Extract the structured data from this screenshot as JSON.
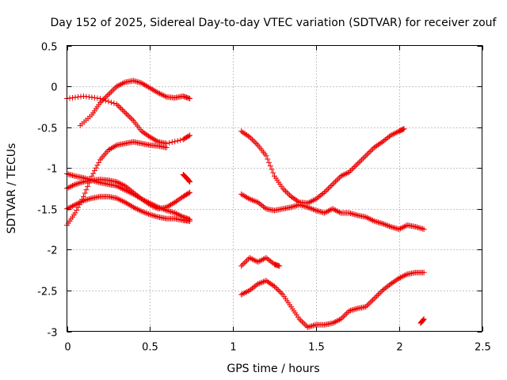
{
  "chart_data": {
    "type": "scatter",
    "title": "Day 152 of 2025, Sidereal Day-to-day VTEC variation (SDTVAR) for receiver zouf",
    "xlabel": "GPS time / hours",
    "ylabel": "SDTVAR / TECUs",
    "xlim": [
      0,
      2.5
    ],
    "ylim": [
      -3,
      0.5
    ],
    "xticks": [
      "0",
      "0.5",
      "1",
      "1.5",
      "2",
      "2.5"
    ],
    "xtick_values": [
      0,
      0.5,
      1,
      1.5,
      2,
      2.5
    ],
    "yticks": [
      "0.5",
      "0",
      "-0.5",
      "-1",
      "-1.5",
      "-2",
      "-2.5",
      "-3"
    ],
    "ytick_values": [
      0.5,
      0,
      -0.5,
      -1,
      -1.5,
      -2,
      -2.5,
      -3
    ],
    "grid": true,
    "marker": "+",
    "color": "#ee0000",
    "series": [
      {
        "x": [
          0.0,
          0.1,
          0.2,
          0.3,
          0.35,
          0.4,
          0.45,
          0.5,
          0.55,
          0.6,
          0.7,
          0.74
        ],
        "y": [
          -0.15,
          -0.12,
          -0.15,
          -0.22,
          -0.32,
          -0.42,
          -0.55,
          -0.62,
          -0.68,
          -0.7,
          -0.65,
          -0.6
        ]
      },
      {
        "x": [
          0.08,
          0.15,
          0.2,
          0.25,
          0.3,
          0.35,
          0.4,
          0.45,
          0.5,
          0.55,
          0.6,
          0.65,
          0.7,
          0.74
        ],
        "y": [
          -0.48,
          -0.35,
          -0.2,
          -0.1,
          0.0,
          0.05,
          0.07,
          0.04,
          -0.02,
          -0.08,
          -0.13,
          -0.14,
          -0.12,
          -0.15
        ]
      },
      {
        "x": [
          0.0,
          0.05,
          0.1,
          0.15,
          0.2,
          0.25,
          0.3,
          0.35,
          0.4,
          0.45,
          0.5,
          0.55,
          0.6
        ],
        "y": [
          -1.7,
          -1.55,
          -1.35,
          -1.1,
          -0.9,
          -0.78,
          -0.72,
          -0.7,
          -0.68,
          -0.7,
          -0.72,
          -0.73,
          -0.75
        ]
      },
      {
        "x": [
          0.0,
          0.05,
          0.1,
          0.15,
          0.2,
          0.25,
          0.3,
          0.35,
          0.4,
          0.45,
          0.5,
          0.55,
          0.6,
          0.65,
          0.7,
          0.74
        ],
        "y": [
          -1.07,
          -1.1,
          -1.12,
          -1.15,
          -1.18,
          -1.2,
          -1.22,
          -1.27,
          -1.32,
          -1.38,
          -1.43,
          -1.48,
          -1.52,
          -1.55,
          -1.6,
          -1.63
        ]
      },
      {
        "x": [
          0.0,
          0.05,
          0.1,
          0.15,
          0.2,
          0.25,
          0.3,
          0.35,
          0.4,
          0.45,
          0.5,
          0.55,
          0.6,
          0.65,
          0.7,
          0.74
        ],
        "y": [
          -1.25,
          -1.2,
          -1.17,
          -1.15,
          -1.14,
          -1.15,
          -1.17,
          -1.22,
          -1.3,
          -1.38,
          -1.45,
          -1.5,
          -1.48,
          -1.42,
          -1.35,
          -1.3
        ]
      },
      {
        "x": [
          0.0,
          0.05,
          0.1,
          0.15,
          0.2,
          0.25,
          0.3,
          0.35,
          0.4,
          0.45,
          0.5,
          0.55,
          0.6,
          0.65,
          0.7,
          0.74
        ],
        "y": [
          -1.5,
          -1.45,
          -1.4,
          -1.37,
          -1.35,
          -1.35,
          -1.37,
          -1.42,
          -1.48,
          -1.53,
          -1.57,
          -1.6,
          -1.62,
          -1.62,
          -1.64,
          -1.65
        ]
      },
      {
        "x": [
          0.7,
          0.72,
          0.74
        ],
        "y": [
          -1.08,
          -1.12,
          -1.17
        ]
      },
      {
        "x": [
          1.05,
          1.1,
          1.15,
          1.2,
          1.25,
          1.3,
          1.35,
          1.4,
          1.45,
          1.5,
          1.55,
          1.6,
          1.65,
          1.7,
          1.75,
          1.8,
          1.85,
          1.9,
          1.95,
          2.0,
          2.03
        ],
        "y": [
          -0.55,
          -0.62,
          -0.72,
          -0.85,
          -1.1,
          -1.25,
          -1.35,
          -1.42,
          -1.43,
          -1.38,
          -1.3,
          -1.2,
          -1.1,
          -1.05,
          -0.95,
          -0.85,
          -0.75,
          -0.68,
          -0.6,
          -0.55,
          -0.52
        ]
      },
      {
        "x": [
          1.05,
          1.1,
          1.15,
          1.2,
          1.25,
          1.3,
          1.35,
          1.4,
          1.45,
          1.5,
          1.55,
          1.6,
          1.65,
          1.7,
          1.75,
          1.8,
          1.85,
          1.9,
          1.95,
          2.0,
          2.05,
          2.1,
          2.15
        ],
        "y": [
          -1.32,
          -1.38,
          -1.42,
          -1.5,
          -1.52,
          -1.5,
          -1.48,
          -1.45,
          -1.48,
          -1.52,
          -1.55,
          -1.5,
          -1.55,
          -1.55,
          -1.58,
          -1.6,
          -1.65,
          -1.68,
          -1.72,
          -1.75,
          -1.7,
          -1.72,
          -1.75
        ]
      },
      {
        "x": [
          1.05,
          1.1,
          1.15,
          1.2,
          1.25,
          1.3,
          1.35,
          1.4,
          1.45,
          1.5,
          1.55,
          1.6,
          1.65,
          1.7,
          1.75,
          1.8,
          1.85,
          1.9,
          1.95,
          2.0,
          2.05,
          2.1,
          2.15
        ],
        "y": [
          -2.55,
          -2.5,
          -2.42,
          -2.38,
          -2.45,
          -2.55,
          -2.7,
          -2.85,
          -2.95,
          -2.92,
          -2.92,
          -2.9,
          -2.85,
          -2.75,
          -2.72,
          -2.7,
          -2.6,
          -2.5,
          -2.42,
          -2.35,
          -2.3,
          -2.28,
          -2.28
        ]
      },
      {
        "x": [
          1.05,
          1.1,
          1.15,
          1.2,
          1.25,
          1.28
        ],
        "y": [
          -2.2,
          -2.1,
          -2.15,
          -2.1,
          -2.18,
          -2.2
        ]
      },
      {
        "x": [
          2.13,
          2.15
        ],
        "y": [
          -2.9,
          -2.85
        ]
      }
    ]
  }
}
